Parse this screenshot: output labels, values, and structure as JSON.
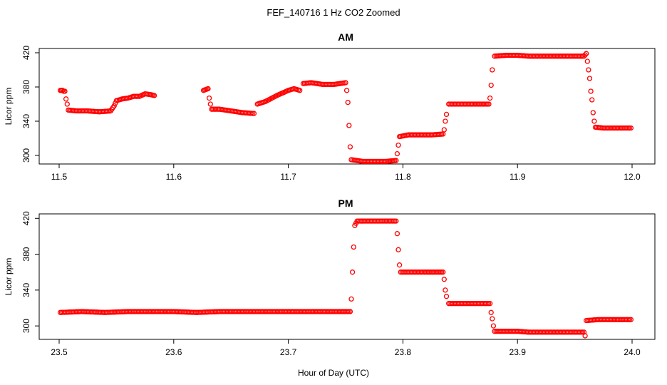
{
  "figure": {
    "title": "FEF_140716  1 Hz CO2 Zoomed",
    "xlabel": "Hour of Day (UTC)",
    "marker_color": "#ff0000"
  },
  "chart_data": [
    {
      "type": "scatter",
      "title": "AM",
      "xlabel": "Hour of Day (UTC)",
      "ylabel": "Licor ppm",
      "xlim": [
        11.5,
        12.0
      ],
      "ylim": [
        290,
        425
      ],
      "xticks": [
        "11.5",
        "11.6",
        "11.7",
        "11.8",
        "11.9",
        "12.0"
      ],
      "yticks": [
        "300",
        "340",
        "380",
        "420"
      ],
      "series": [
        {
          "points": [
            [
              11.501,
              376
            ],
            [
              11.503,
              376
            ],
            [
              11.504,
              375
            ],
            [
              11.505,
              375
            ],
            [
              11.506,
              366
            ],
            [
              11.507,
              360
            ],
            [
              11.508,
              353
            ],
            [
              11.515,
              352
            ],
            [
              11.525,
              352
            ],
            [
              11.535,
              351
            ],
            [
              11.545,
              352
            ],
            [
              11.548,
              358
            ],
            [
              11.55,
              364
            ],
            [
              11.555,
              366
            ],
            [
              11.56,
              367
            ],
            [
              11.565,
              369
            ],
            [
              11.57,
              369
            ],
            [
              11.575,
              372
            ],
            [
              11.58,
              371
            ],
            [
              11.583,
              370
            ],
            [
              11.626,
              376
            ],
            [
              11.628,
              377
            ],
            [
              11.63,
              378
            ],
            [
              11.631,
              367
            ],
            [
              11.632,
              360
            ],
            [
              11.633,
              354
            ],
            [
              11.64,
              354
            ],
            [
              11.65,
              352
            ],
            [
              11.66,
              350
            ],
            [
              11.67,
              349
            ],
            [
              11.673,
              360
            ],
            [
              11.68,
              363
            ],
            [
              11.69,
              370
            ],
            [
              11.7,
              376
            ],
            [
              11.705,
              378
            ],
            [
              11.71,
              376
            ],
            [
              11.713,
              384
            ],
            [
              11.72,
              385
            ],
            [
              11.73,
              383
            ],
            [
              11.74,
              383
            ],
            [
              11.75,
              385
            ],
            [
              11.751,
              376
            ],
            [
              11.752,
              362
            ],
            [
              11.753,
              335
            ],
            [
              11.754,
              310
            ],
            [
              11.755,
              295
            ],
            [
              11.765,
              293
            ],
            [
              11.775,
              293
            ],
            [
              11.785,
              293
            ],
            [
              11.794,
              294
            ],
            [
              11.795,
              302
            ],
            [
              11.796,
              312
            ],
            [
              11.797,
              322
            ],
            [
              11.805,
              324
            ],
            [
              11.815,
              324
            ],
            [
              11.825,
              324
            ],
            [
              11.835,
              325
            ],
            [
              11.836,
              330
            ],
            [
              11.837,
              340
            ],
            [
              11.838,
              348
            ],
            [
              11.84,
              360
            ],
            [
              11.85,
              360
            ],
            [
              11.86,
              360
            ],
            [
              11.875,
              360
            ],
            [
              11.876,
              367
            ],
            [
              11.877,
              382
            ],
            [
              11.878,
              400
            ],
            [
              11.88,
              416
            ],
            [
              11.89,
              417
            ],
            [
              11.9,
              417
            ],
            [
              11.91,
              416
            ],
            [
              11.92,
              416
            ],
            [
              11.93,
              416
            ],
            [
              11.94,
              416
            ],
            [
              11.958,
              416
            ],
            [
              11.96,
              419
            ],
            [
              11.961,
              410
            ],
            [
              11.962,
              400
            ],
            [
              11.963,
              390
            ],
            [
              11.964,
              375
            ],
            [
              11.965,
              365
            ],
            [
              11.966,
              350
            ],
            [
              11.967,
              340
            ],
            [
              11.968,
              333
            ],
            [
              11.975,
              332
            ],
            [
              11.985,
              332
            ],
            [
              11.999,
              332
            ]
          ]
        }
      ]
    },
    {
      "type": "scatter",
      "title": "PM",
      "xlabel": "Hour of Day (UTC)",
      "ylabel": "Licor ppm",
      "xlim": [
        23.5,
        24.0
      ],
      "ylim": [
        285,
        425
      ],
      "xticks": [
        "23.5",
        "23.6",
        "23.7",
        "23.8",
        "23.9",
        "24.0"
      ],
      "yticks": [
        "300",
        "340",
        "380",
        "420"
      ],
      "series": [
        {
          "points": [
            [
              23.501,
              315
            ],
            [
              23.52,
              316
            ],
            [
              23.54,
              315
            ],
            [
              23.56,
              316
            ],
            [
              23.58,
              316
            ],
            [
              23.6,
              316
            ],
            [
              23.62,
              315
            ],
            [
              23.64,
              316
            ],
            [
              23.66,
              316
            ],
            [
              23.68,
              316
            ],
            [
              23.7,
              316
            ],
            [
              23.72,
              316
            ],
            [
              23.74,
              316
            ],
            [
              23.754,
              316
            ],
            [
              23.755,
              330
            ],
            [
              23.756,
              360
            ],
            [
              23.757,
              388
            ],
            [
              23.758,
              412
            ],
            [
              23.76,
              417
            ],
            [
              23.77,
              417
            ],
            [
              23.78,
              417
            ],
            [
              23.794,
              417
            ],
            [
              23.795,
              403
            ],
            [
              23.796,
              385
            ],
            [
              23.797,
              368
            ],
            [
              23.798,
              360
            ],
            [
              23.81,
              360
            ],
            [
              23.82,
              360
            ],
            [
              23.835,
              360
            ],
            [
              23.836,
              352
            ],
            [
              23.837,
              340
            ],
            [
              23.838,
              333
            ],
            [
              23.84,
              325
            ],
            [
              23.85,
              325
            ],
            [
              23.86,
              325
            ],
            [
              23.876,
              325
            ],
            [
              23.877,
              315
            ],
            [
              23.878,
              308
            ],
            [
              23.879,
              300
            ],
            [
              23.88,
              294
            ],
            [
              23.89,
              294
            ],
            [
              23.9,
              294
            ],
            [
              23.91,
              293
            ],
            [
              23.92,
              293
            ],
            [
              23.93,
              293
            ],
            [
              23.94,
              293
            ],
            [
              23.958,
              293
            ],
            [
              23.959,
              289
            ],
            [
              23.96,
              306
            ],
            [
              23.97,
              307
            ],
            [
              23.98,
              307
            ],
            [
              23.999,
              307
            ]
          ]
        }
      ]
    }
  ]
}
